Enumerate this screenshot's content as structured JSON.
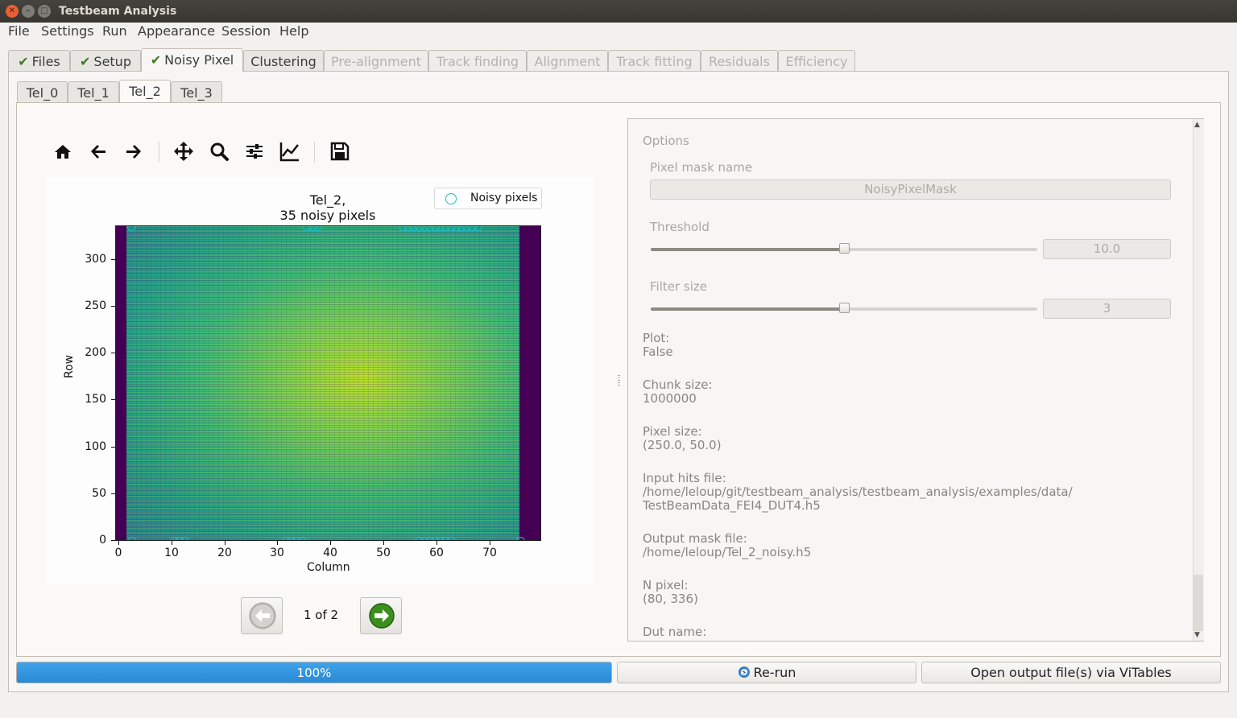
{
  "window": {
    "title": "Testbeam Analysis"
  },
  "menu": [
    "File",
    "Settings",
    "Run",
    "Appearance",
    "Session",
    "Help"
  ],
  "tabs": [
    {
      "label": "Files",
      "done": true
    },
    {
      "label": "Setup",
      "done": true
    },
    {
      "label": "Noisy Pixel",
      "done": true,
      "active": true
    },
    {
      "label": "Clustering"
    },
    {
      "label": "Pre-alignment",
      "disabled": true
    },
    {
      "label": "Track finding",
      "disabled": true
    },
    {
      "label": "Alignment",
      "disabled": true
    },
    {
      "label": "Track fitting",
      "disabled": true
    },
    {
      "label": "Residuals",
      "disabled": true
    },
    {
      "label": "Efficiency",
      "disabled": true
    }
  ],
  "subtabs": [
    "Tel_0",
    "Tel_1",
    "Tel_2",
    "Tel_3"
  ],
  "active_subtab": "Tel_2",
  "toolbar": [
    "home-icon",
    "back-arrow-icon",
    "forward-arrow-icon",
    "pan-icon",
    "zoom-icon",
    "subplots-config-icon",
    "axes-edit-icon",
    "save-icon"
  ],
  "chart_data": {
    "type": "heatmap",
    "title_line1": "Tel_2,",
    "title_line2": "35 noisy pixels",
    "xlabel": "Column",
    "ylabel": "Row",
    "xlim": [
      -1,
      79
    ],
    "ylim": [
      0,
      336
    ],
    "xticks": [
      "0",
      "10",
      "20",
      "30",
      "40",
      "50",
      "60",
      "70"
    ],
    "yticks": [
      "0",
      "50",
      "100",
      "150",
      "200",
      "250",
      "300"
    ],
    "legend": "Noisy pixels",
    "colormap": "viridis",
    "occupied_columns": [
      1,
      76
    ],
    "noisy_pixels": [
      [
        2,
        0
      ],
      [
        10,
        0
      ],
      [
        11,
        0
      ],
      [
        12,
        0
      ],
      [
        31,
        0
      ],
      [
        32,
        0
      ],
      [
        33,
        0
      ],
      [
        34,
        0
      ],
      [
        56,
        0
      ],
      [
        57,
        0
      ],
      [
        58,
        0
      ],
      [
        59,
        0
      ],
      [
        60,
        0
      ],
      [
        61,
        0
      ],
      [
        62,
        0
      ],
      [
        75,
        0
      ],
      [
        2,
        335
      ],
      [
        35,
        335
      ],
      [
        36,
        335
      ],
      [
        37,
        335
      ],
      [
        53,
        335
      ],
      [
        54,
        335
      ],
      [
        55,
        335
      ],
      [
        56,
        335
      ],
      [
        57,
        335
      ],
      [
        58,
        335
      ],
      [
        59,
        335
      ],
      [
        60,
        335
      ],
      [
        61,
        335
      ],
      [
        62,
        335
      ],
      [
        63,
        335
      ],
      [
        64,
        335
      ],
      [
        65,
        335
      ],
      [
        66,
        335
      ],
      [
        67,
        335
      ]
    ]
  },
  "pager": {
    "label": "1 of 2"
  },
  "options": {
    "header": "Options",
    "pixel_mask_name_label": "Pixel mask name",
    "pixel_mask_name_value": "NoisyPixelMask",
    "threshold_label": "Threshold",
    "threshold_value": "10.0",
    "threshold_fraction": 0.5,
    "filter_size_label": "Filter size",
    "filter_size_value": "3",
    "filter_size_fraction": 0.5,
    "plot_label": "Plot:",
    "plot_value": "False",
    "chunk_size_label": "Chunk size:",
    "chunk_size_value": "1000000",
    "pixel_size_label": "Pixel size:",
    "pixel_size_value": "(250.0, 50.0)",
    "input_hits_label": "Input hits file:",
    "input_hits_line1": "/home/leloup/git/testbeam_analysis/testbeam_analysis/examples/data/",
    "input_hits_line2": "TestBeamData_FEI4_DUT4.h5",
    "output_mask_label": "Output mask file:",
    "output_mask_value": "/home/leloup/Tel_2_noisy.h5",
    "n_pixel_label": "N pixel:",
    "n_pixel_value": "(80, 336)",
    "dut_name_label": "Dut name:"
  },
  "progress": {
    "value": 1.0,
    "label": "100%"
  },
  "buttons": {
    "rerun": "Re-run",
    "open_vitables": "Open output file(s) via ViTables"
  },
  "colors": {
    "accent": "#2a8ad6",
    "check": "#3e7a24",
    "noisy_marker": "#17becf"
  }
}
